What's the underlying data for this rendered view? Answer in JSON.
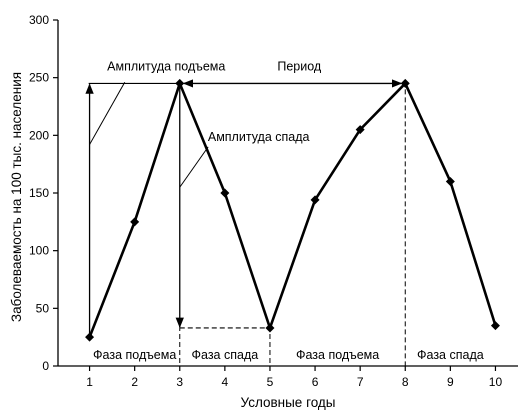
{
  "chart_data": {
    "type": "line",
    "xlabel": "Условные годы",
    "ylabel": "Заболеваемость на 100 тыс. населения",
    "xlim": [
      0.3,
      10.5
    ],
    "ylim": [
      0,
      300
    ],
    "x_ticks": [
      1,
      2,
      3,
      4,
      5,
      6,
      7,
      8,
      9,
      10
    ],
    "y_ticks": [
      0,
      50,
      100,
      150,
      200,
      250,
      300
    ],
    "grid": false,
    "series": [
      {
        "x": [
          1,
          2,
          3,
          4,
          5,
          6,
          7,
          8,
          9,
          10
        ],
        "values": [
          25,
          125,
          245,
          150,
          33,
          144,
          205,
          245,
          160,
          35
        ]
      }
    ],
    "annotations": {
      "rise_amplitude": "Амплитуда подъема",
      "fall_amplitude": "Амплитуда спада",
      "period": "Период",
      "phases": [
        {
          "label": "Фаза подъема",
          "from": 1,
          "to": 3
        },
        {
          "label": "Фаза спада",
          "from": 3,
          "to": 5
        },
        {
          "label": "Фаза подъема",
          "from": 5,
          "to": 8
        },
        {
          "label": "Фаза спада",
          "from": 8,
          "to": 10
        }
      ]
    },
    "colors": {
      "line": "#000000",
      "axis": "#000000"
    }
  }
}
